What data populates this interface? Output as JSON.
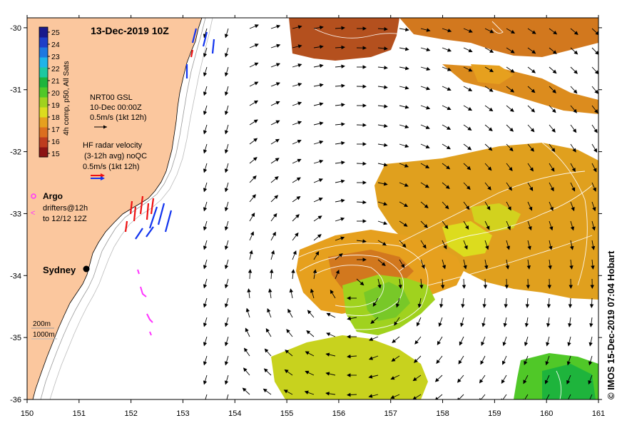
{
  "map": {
    "title": "13-Dec-2019 10Z",
    "credit": "© IMOS 15-Dec-2019 07:04 Hobart",
    "x_ticks": [
      150,
      151,
      152,
      153,
      154,
      155,
      156,
      157,
      158,
      159,
      160,
      161
    ],
    "y_ticks": [
      -30,
      -31,
      -32,
      -33,
      -34,
      -35,
      -36
    ],
    "lon_range": [
      150,
      161
    ],
    "lat_range": [
      -36,
      -29.84
    ]
  },
  "colorbar": {
    "label": "4h comp, p50, All Sats",
    "ticks": [
      15,
      16,
      17,
      18,
      19,
      20,
      21,
      22,
      23,
      24,
      25
    ],
    "colors": [
      "#1a1a8c",
      "#1f3fc8",
      "#1e78e0",
      "#1eb4e8",
      "#1ec8a0",
      "#1eb43c",
      "#50c828",
      "#a0d21e",
      "#dcdc1e",
      "#e6a01e",
      "#dc6e1e",
      "#be3c1e",
      "#8c1414"
    ]
  },
  "legend": {
    "gsl_title": "NRT00 GSL",
    "gsl_date": "10-Dec 00:00Z",
    "gsl_scale": "0.5m/s (1kt 12h)",
    "hf_title": "HF radar velocity",
    "hf_sub": "(3-12h avg) noQC",
    "hf_scale": "0.5m/s (1kt 12h)",
    "argo_label": "Argo",
    "drifters_label": "drifters@12h",
    "drifters_sub": "to 12/12 12Z",
    "city_label": "Sydney",
    "contour_200": "200m",
    "contour_1000": "1000m"
  },
  "colors": {
    "land": "#fbc79e",
    "argo": "#ff33ff",
    "hf_red": "#ee1111",
    "hf_blue": "#1133ee"
  }
}
